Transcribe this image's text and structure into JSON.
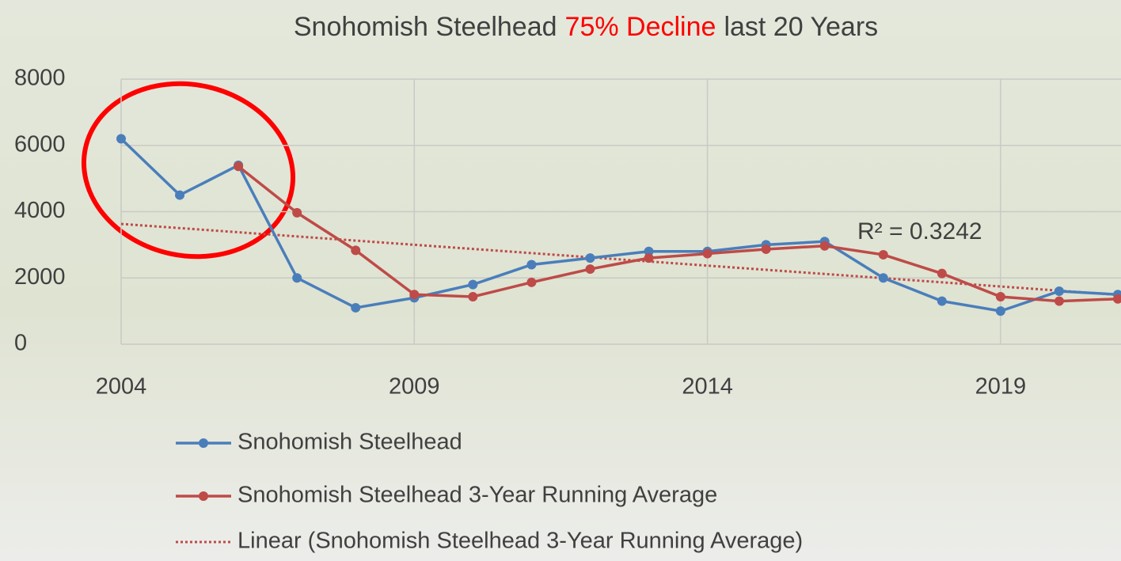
{
  "chart_data": {
    "type": "line",
    "title_parts": [
      {
        "text": "Snohomish Steelhead",
        "color": "#404040"
      },
      {
        "text": "75% Decline",
        "color": "#ff0000"
      },
      {
        "text": "last 20 Years",
        "color": "#404040"
      }
    ],
    "x": [
      2004,
      2005,
      2006,
      2007,
      2008,
      2009,
      2010,
      2011,
      2012,
      2013,
      2014,
      2015,
      2016,
      2017,
      2018,
      2019,
      2020,
      2021
    ],
    "series": [
      {
        "name": "Snohomish Steelhead",
        "color": "#4a7ebb",
        "values": [
          6200,
          4500,
          5400,
          2000,
          1100,
          1400,
          1800,
          2400,
          2600,
          2800,
          2800,
          3000,
          3100,
          2000,
          1300,
          1000,
          1600,
          1500
        ]
      },
      {
        "name": "Snohomish Steelhead 3-Year Running Average",
        "color": "#be4b48",
        "values": [
          null,
          null,
          5367,
          3967,
          2833,
          1500,
          1433,
          1867,
          2267,
          2600,
          2733,
          2867,
          2967,
          2700,
          2133,
          1433,
          1300,
          1367
        ]
      }
    ],
    "trendline": {
      "name": "Linear (Snohomish Steelhead 3-Year Running Average)",
      "color": "#be4b48",
      "x": [
        2004,
        2021
      ],
      "values": [
        3630,
        1490
      ]
    },
    "annotation": "R² = 0.3242",
    "xlim": [
      2004,
      2021
    ],
    "xticks": [
      2004,
      2009,
      2014,
      2019
    ],
    "ylim": [
      0,
      8000
    ],
    "yticks": [
      0,
      2000,
      4000,
      6000,
      8000
    ],
    "grid": true
  }
}
